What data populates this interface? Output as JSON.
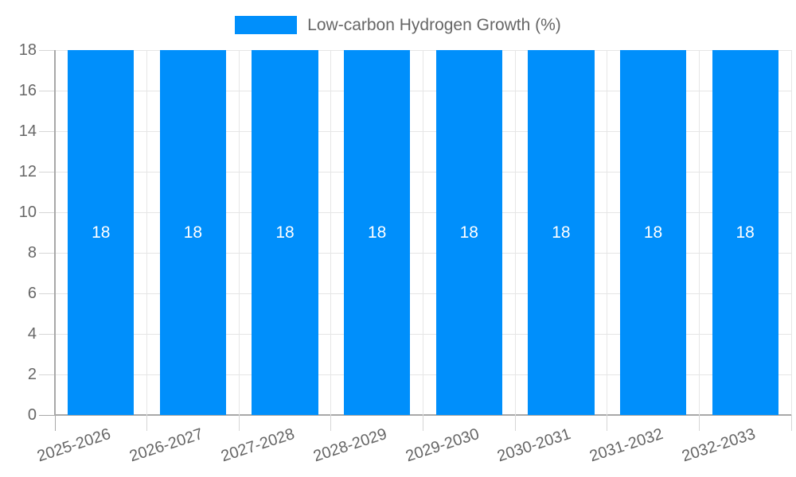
{
  "chart_data": {
    "type": "bar",
    "title": "",
    "xlabel": "",
    "ylabel": "",
    "categories": [
      "2025-2026",
      "2026-2027",
      "2027-2028",
      "2028-2029",
      "2029-2030",
      "2030-2031",
      "2031-2032",
      "2032-2033"
    ],
    "series": [
      {
        "name": "Low-carbon Hydrogen Growth (%)",
        "values": [
          18,
          18,
          18,
          18,
          18,
          18,
          18,
          18
        ]
      }
    ],
    "bar_value_labels": [
      "18",
      "18",
      "18",
      "18",
      "18",
      "18",
      "18",
      "18"
    ],
    "ylim": [
      0,
      18
    ],
    "yticks": [
      0,
      2,
      4,
      6,
      8,
      10,
      12,
      14,
      16,
      18
    ],
    "grid": true,
    "legend_position": "top",
    "x_label_rotation_deg": -18
  },
  "colors": {
    "bar": "#008ffb",
    "grid": "#e6e6e6",
    "tick": "#d6d6d6",
    "axis": "#a8a8a8",
    "text": "#666666",
    "value_label": "#ffffff",
    "background": "#ffffff"
  }
}
